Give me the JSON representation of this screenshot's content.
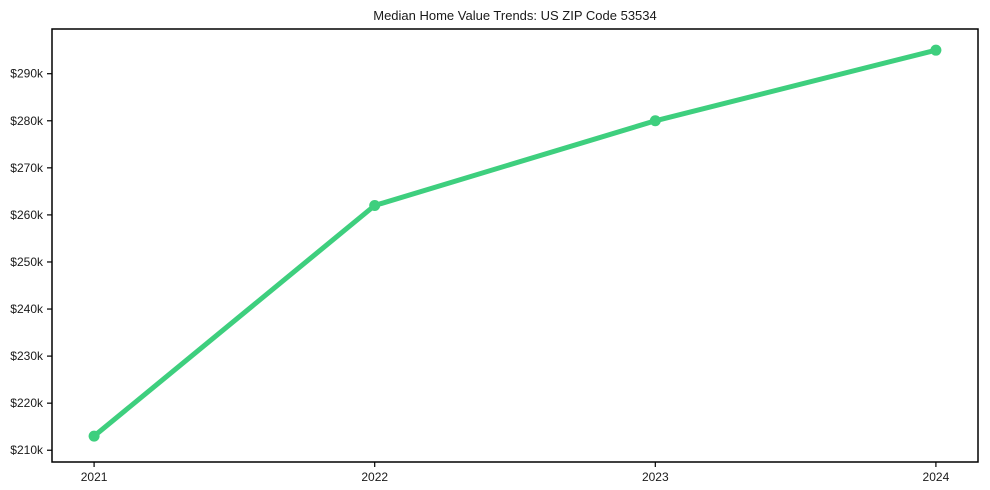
{
  "page": {
    "background_color": "#ffffff",
    "text_color": "#1a1a1a"
  },
  "chart_data": {
    "type": "line",
    "title": "Median Home Value Trends: US ZIP Code 53534",
    "x": [
      2021,
      2022,
      2023,
      2024
    ],
    "x_tick_labels": [
      "2021",
      "2022",
      "2023",
      "2024"
    ],
    "values": [
      213000,
      262000,
      280000,
      295000
    ],
    "y_ticks": [
      210000,
      220000,
      230000,
      240000,
      250000,
      260000,
      270000,
      280000,
      290000
    ],
    "y_tick_labels": [
      "$210k",
      "$220k",
      "$230k",
      "$240k",
      "$250k",
      "$260k",
      "$270k",
      "$280k",
      "$290k"
    ],
    "xlim": [
      2020.85,
      2024.15
    ],
    "ylim": [
      207500,
      299500
    ],
    "grid": false,
    "legend": "none",
    "line_color": "#3ecf7e",
    "marker": "circle",
    "marker_radius": 5.5,
    "line_width": 5,
    "frame_color": "#000000",
    "tick_color": "#1a1a1a"
  }
}
